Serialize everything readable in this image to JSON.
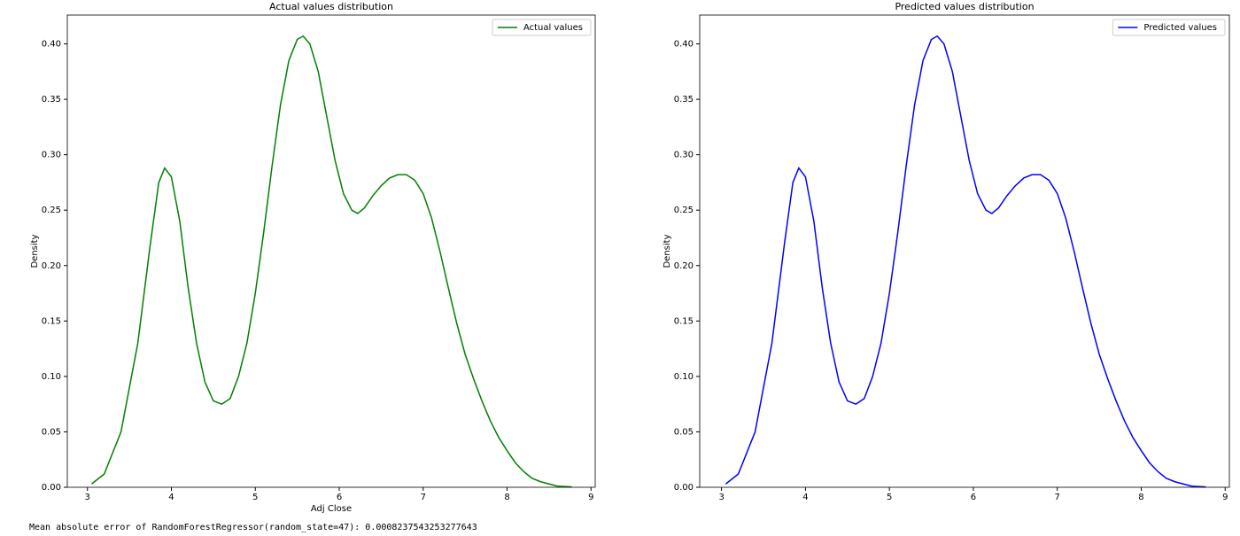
{
  "chart_data": [
    {
      "type": "line",
      "title": "Actual values distribution",
      "xlabel": "Adj Close",
      "ylabel": "Density",
      "x": [
        3.05,
        3.2,
        3.4,
        3.6,
        3.75,
        3.85,
        3.92,
        4.0,
        4.1,
        4.2,
        4.3,
        4.4,
        4.5,
        4.6,
        4.7,
        4.8,
        4.9,
        5.0,
        5.1,
        5.2,
        5.3,
        5.4,
        5.5,
        5.57,
        5.65,
        5.75,
        5.85,
        5.95,
        6.05,
        6.15,
        6.22,
        6.3,
        6.4,
        6.5,
        6.6,
        6.7,
        6.8,
        6.9,
        7.0,
        7.1,
        7.2,
        7.3,
        7.4,
        7.5,
        7.6,
        7.7,
        7.8,
        7.9,
        8.0,
        8.1,
        8.2,
        8.3,
        8.4,
        8.5,
        8.6,
        8.77
      ],
      "series": [
        {
          "name": "Actual values",
          "color": "#008000",
          "values": [
            0.003,
            0.012,
            0.05,
            0.13,
            0.22,
            0.275,
            0.288,
            0.28,
            0.24,
            0.18,
            0.13,
            0.095,
            0.078,
            0.075,
            0.08,
            0.1,
            0.13,
            0.175,
            0.23,
            0.29,
            0.345,
            0.385,
            0.404,
            0.407,
            0.4,
            0.375,
            0.335,
            0.295,
            0.265,
            0.25,
            0.247,
            0.252,
            0.263,
            0.272,
            0.279,
            0.282,
            0.282,
            0.277,
            0.265,
            0.243,
            0.213,
            0.18,
            0.148,
            0.12,
            0.098,
            0.078,
            0.06,
            0.045,
            0.033,
            0.022,
            0.014,
            0.008,
            0.005,
            0.003,
            0.001,
            0.0003
          ]
        }
      ],
      "xlim": [
        2.76,
        9.05
      ],
      "ylim": [
        0,
        0.426
      ],
      "xticks": [
        3,
        4,
        5,
        6,
        7,
        8,
        9
      ],
      "yticks": [
        {
          "value": 0,
          "label": "0.00"
        },
        {
          "value": 0.05,
          "label": "0.05"
        },
        {
          "value": 0.1,
          "label": "0.10"
        },
        {
          "value": 0.15,
          "label": "0.15"
        },
        {
          "value": 0.2,
          "label": "0.20"
        },
        {
          "value": 0.25,
          "label": "0.25"
        },
        {
          "value": 0.3,
          "label": "0.30"
        },
        {
          "value": 0.35,
          "label": "0.35"
        },
        {
          "value": 0.4,
          "label": "0.40"
        }
      ],
      "legend": "upper right"
    },
    {
      "type": "line",
      "title": "Predicted values distribution",
      "ylabel": "Density",
      "x": [
        3.05,
        3.2,
        3.4,
        3.6,
        3.75,
        3.85,
        3.92,
        4.0,
        4.1,
        4.2,
        4.3,
        4.4,
        4.5,
        4.6,
        4.7,
        4.8,
        4.9,
        5.0,
        5.1,
        5.2,
        5.3,
        5.4,
        5.5,
        5.57,
        5.65,
        5.75,
        5.85,
        5.95,
        6.05,
        6.15,
        6.22,
        6.3,
        6.4,
        6.5,
        6.6,
        6.7,
        6.8,
        6.9,
        7.0,
        7.1,
        7.2,
        7.3,
        7.4,
        7.5,
        7.6,
        7.7,
        7.8,
        7.9,
        8.0,
        8.1,
        8.2,
        8.3,
        8.4,
        8.5,
        8.6,
        8.77
      ],
      "series": [
        {
          "name": "Predicted values",
          "color": "#0000ff",
          "values": [
            0.003,
            0.012,
            0.05,
            0.13,
            0.22,
            0.275,
            0.288,
            0.28,
            0.24,
            0.18,
            0.13,
            0.095,
            0.078,
            0.075,
            0.08,
            0.1,
            0.13,
            0.175,
            0.23,
            0.29,
            0.345,
            0.385,
            0.404,
            0.407,
            0.4,
            0.375,
            0.335,
            0.295,
            0.265,
            0.25,
            0.247,
            0.252,
            0.263,
            0.272,
            0.279,
            0.282,
            0.282,
            0.277,
            0.265,
            0.243,
            0.213,
            0.18,
            0.148,
            0.12,
            0.098,
            0.078,
            0.06,
            0.045,
            0.033,
            0.022,
            0.014,
            0.008,
            0.005,
            0.003,
            0.001,
            0.0003
          ]
        }
      ],
      "xlim": [
        2.74,
        9.05
      ],
      "ylim": [
        0,
        0.426
      ],
      "xticks": [
        3,
        4,
        5,
        6,
        7,
        8,
        9
      ],
      "yticks": [
        {
          "value": 0,
          "label": "0.00"
        },
        {
          "value": 0.05,
          "label": "0.05"
        },
        {
          "value": 0.1,
          "label": "0.10"
        },
        {
          "value": 0.15,
          "label": "0.15"
        },
        {
          "value": 0.2,
          "label": "0.20"
        },
        {
          "value": 0.25,
          "label": "0.25"
        },
        {
          "value": 0.3,
          "label": "0.30"
        },
        {
          "value": 0.35,
          "label": "0.35"
        },
        {
          "value": 0.4,
          "label": "0.40"
        }
      ],
      "legend": "upper right"
    }
  ],
  "output_text": "Mean absolute error of RandomForestRegressor(random_state=47): 0.0008237543253277643"
}
